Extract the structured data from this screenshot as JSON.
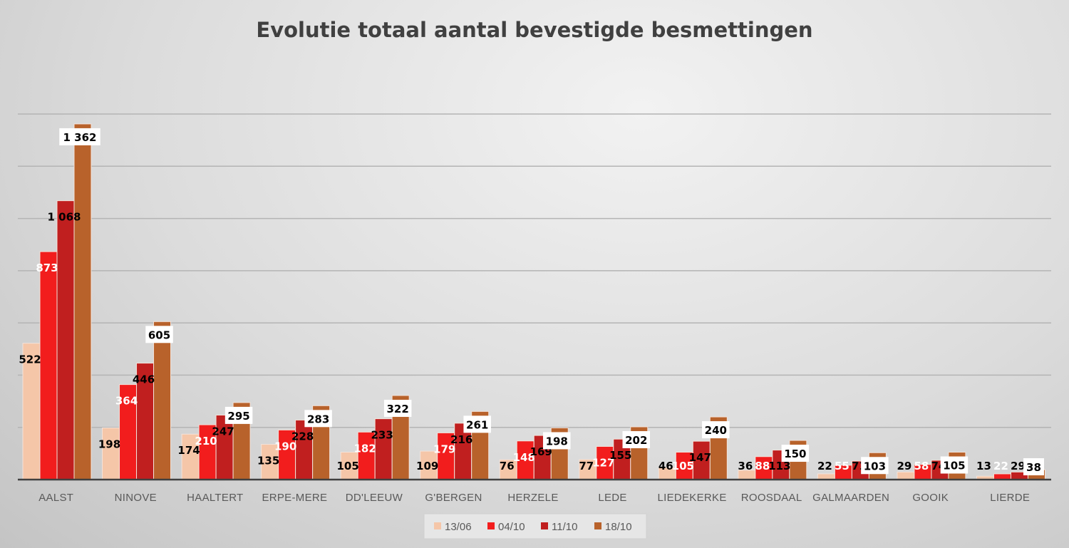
{
  "chart_data": {
    "type": "bar",
    "title": "Evolutie totaal aantal bevestigde besmettingen",
    "xlabel": "",
    "ylabel": "",
    "ylim": [
      0,
      1400
    ],
    "grid": true,
    "grid_step": 200,
    "legend_position": "bottom",
    "categories": [
      "AALST",
      "NINOVE",
      "HAALTERT",
      "ERPE-MERE",
      "DD'LEEUW",
      "G'BERGEN",
      "HERZELE",
      "LEDE",
      "LIEDEKERKE",
      "ROOSDAAL",
      "GALMAARDEN",
      "GOOIK",
      "LIERDE"
    ],
    "series": [
      {
        "name": "13/06",
        "color": "#F5C6A8",
        "label_color": "#000000",
        "values": [
          522,
          198,
          174,
          135,
          105,
          109,
          76,
          77,
          46,
          36,
          22,
          29,
          13
        ]
      },
      {
        "name": "04/10",
        "color": "#F21D1D",
        "label_color": "#FFFFFF",
        "values": [
          873,
          364,
          210,
          190,
          182,
          179,
          148,
          127,
          105,
          88,
          55,
          58,
          22
        ]
      },
      {
        "name": "11/10",
        "color": "#C01F1F",
        "label_color": "#000000",
        "values": [
          1068,
          446,
          247,
          228,
          233,
          216,
          169,
          155,
          147,
          113,
          71,
          74,
          29
        ]
      },
      {
        "name": "18/10",
        "color": "#B8622B",
        "label_color": "#000000",
        "values": [
          1362,
          605,
          295,
          283,
          322,
          261,
          198,
          202,
          240,
          150,
          103,
          105,
          38
        ]
      }
    ]
  }
}
